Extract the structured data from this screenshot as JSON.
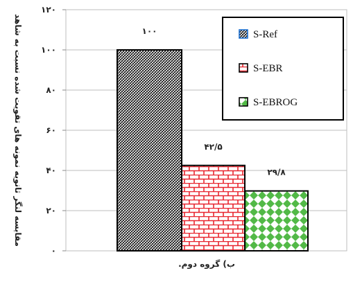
{
  "chart_data": {
    "type": "bar",
    "categories": [
      "S-Ref",
      "S-EBR",
      "S-EBROG"
    ],
    "values": [
      100,
      42.5,
      29.8
    ],
    "value_labels": [
      "۱۰۰",
      "۴۲/۵",
      "۲۹/۸"
    ],
    "ylim": [
      0,
      120
    ],
    "yticks": [
      0,
      20,
      40,
      60,
      80,
      100,
      120
    ],
    "ytick_labels": [
      "۰",
      "۲۰",
      "۴۰",
      "۶۰",
      "۸۰",
      "۱۰۰",
      "۱۲۰"
    ],
    "ylabel": "مقایسه لنگر ثانویه نمونه های تقویت شده نسبت به شاهد",
    "xlabel": "ب) گروه دوم.",
    "grid": true,
    "legend_position": "top-right",
    "series_colors": [
      "#000000",
      "#e8262f",
      "#52b947"
    ],
    "series_patterns": [
      "diagonal-crosshatch",
      "brick",
      "diamond-checker"
    ]
  }
}
